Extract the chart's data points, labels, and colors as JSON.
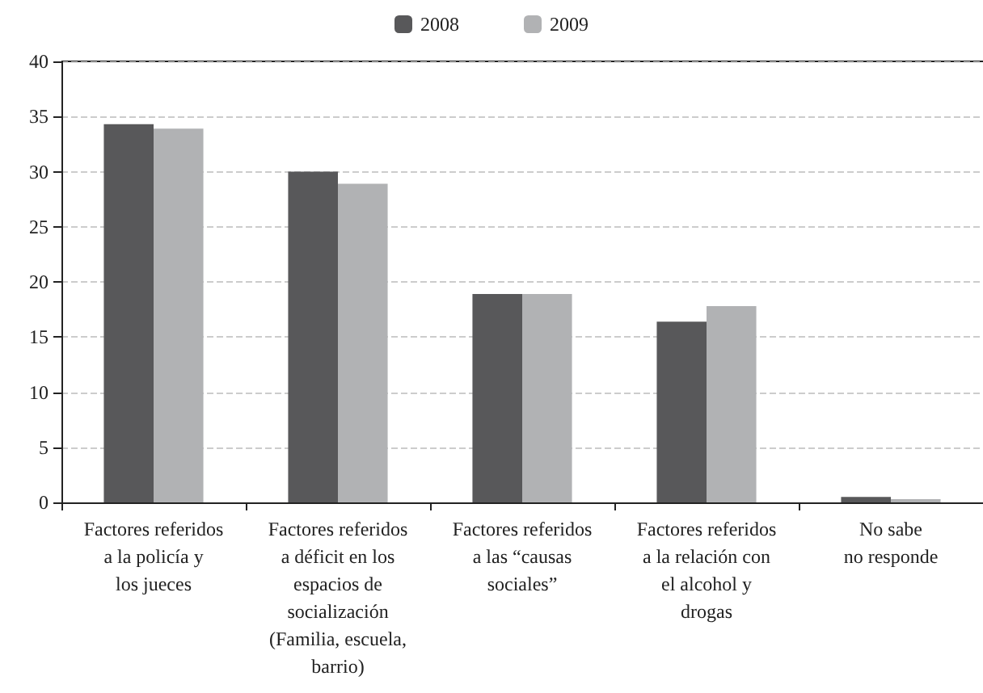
{
  "chart_data": {
    "type": "bar",
    "categories": [
      "Factores referidos\na la policía y\nlos jueces",
      "Factores referidos\na déficit en los\nespacios de\nsocialización\n(Familia, escuela,\nbarrio)",
      "Factores referidos\na las “causas\nsociales”",
      "Factores referidos\na la relación con\nel alcohol y\ndrogas",
      "No sabe\nno responde"
    ],
    "series": [
      {
        "name": "2008",
        "color": "#58585a",
        "values": [
          34.3,
          30,
          18.9,
          16.4,
          0.5
        ]
      },
      {
        "name": "2009",
        "color": "#b1b2b4",
        "values": [
          33.9,
          28.9,
          18.9,
          17.8,
          0.3
        ]
      }
    ],
    "ylim": [
      0,
      40
    ],
    "yticks": [
      0,
      5,
      10,
      15,
      20,
      25,
      30,
      35,
      40
    ],
    "grid": "y",
    "legend": "top"
  }
}
